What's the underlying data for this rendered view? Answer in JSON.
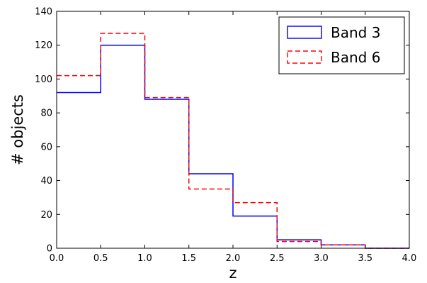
{
  "chart_data": {
    "type": "line",
    "step": true,
    "title": "",
    "xlabel": "z",
    "ylabel": "# objects",
    "xlim": [
      0.0,
      4.0
    ],
    "ylim": [
      0,
      140
    ],
    "xticks": [
      "0.0",
      "0.5",
      "1.0",
      "1.5",
      "2.0",
      "2.5",
      "3.0",
      "3.5",
      "4.0"
    ],
    "yticks": [
      "0",
      "20",
      "40",
      "60",
      "80",
      "100",
      "120",
      "140"
    ],
    "bin_edges": [
      0.0,
      0.5,
      1.0,
      1.5,
      2.0,
      2.5,
      3.0,
      3.5,
      4.0
    ],
    "grid": false,
    "legend_position": "top-right",
    "series": [
      {
        "name": "Band 3",
        "color": "#0000ff",
        "style": "solid",
        "values": [
          92,
          120,
          88,
          44,
          19,
          5,
          2,
          0
        ]
      },
      {
        "name": "Band 6",
        "color": "#ff0000",
        "style": "dashed",
        "values": [
          102,
          127,
          89,
          35,
          27,
          4,
          2,
          0
        ]
      }
    ]
  }
}
